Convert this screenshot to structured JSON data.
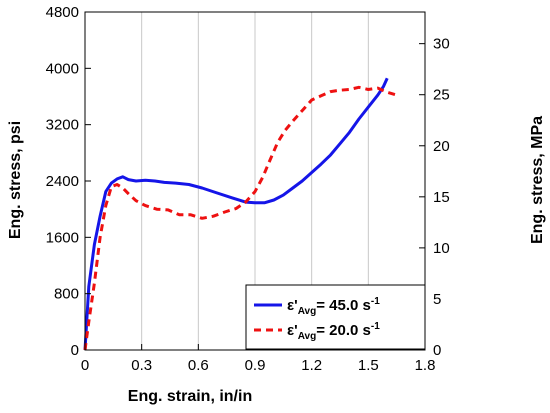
{
  "chart_data": {
    "type": "line",
    "xlabel": "Eng. strain, in/in",
    "ylabel": "Eng. stress, psi",
    "y2label": "Eng. stress, MPa",
    "xlim": [
      0,
      1.8
    ],
    "ylim": [
      0,
      4800
    ],
    "y2lim": [
      0,
      33.1
    ],
    "grid": "vertical",
    "legend_position": "bottom-right",
    "x_ticks": [
      0,
      0.3,
      0.6,
      0.9,
      1.2,
      1.5,
      1.8
    ],
    "x_tick_labels": [
      "0",
      "0.3",
      "0.6",
      "0.9",
      "1.2",
      "1.5",
      "1.8"
    ],
    "y_ticks": [
      0,
      800,
      1600,
      2400,
      3200,
      4000,
      4800
    ],
    "y_tick_labels": [
      "0",
      "800",
      "1600",
      "2400",
      "3200",
      "4000",
      "4800"
    ],
    "y2_ticks": [
      0,
      5,
      10,
      15,
      20,
      25,
      30
    ],
    "y2_tick_labels": [
      "0",
      "5",
      "10",
      "15",
      "20",
      "25",
      "30"
    ],
    "series": [
      {
        "name_base": "ε'",
        "name_sub": "Avg",
        "name_value": "= 45.0 s",
        "name_sup": "-1",
        "color": "#1515e8",
        "dash": "solid",
        "x": [
          0.0,
          0.02,
          0.05,
          0.08,
          0.11,
          0.14,
          0.17,
          0.2,
          0.23,
          0.27,
          0.32,
          0.37,
          0.42,
          0.48,
          0.55,
          0.62,
          0.7,
          0.78,
          0.85,
          0.9,
          0.95,
          1.0,
          1.05,
          1.1,
          1.15,
          1.2,
          1.25,
          1.3,
          1.35,
          1.4,
          1.45,
          1.5,
          1.55,
          1.58,
          1.6
        ],
        "y": [
          0,
          900,
          1500,
          1900,
          2250,
          2370,
          2430,
          2460,
          2420,
          2400,
          2410,
          2400,
          2380,
          2370,
          2350,
          2300,
          2230,
          2160,
          2100,
          2090,
          2090,
          2130,
          2200,
          2300,
          2400,
          2520,
          2640,
          2770,
          2930,
          3090,
          3280,
          3450,
          3620,
          3740,
          3860
        ]
      },
      {
        "name_base": "ε'",
        "name_sub": "Avg",
        "name_value": "= 20.0 s",
        "name_sup": "-1",
        "color": "#ee1111",
        "dash": "dashed",
        "x": [
          0.0,
          0.02,
          0.05,
          0.08,
          0.11,
          0.14,
          0.17,
          0.2,
          0.23,
          0.27,
          0.32,
          0.38,
          0.44,
          0.5,
          0.56,
          0.62,
          0.68,
          0.74,
          0.8,
          0.85,
          0.9,
          0.94,
          0.98,
          1.02,
          1.06,
          1.1,
          1.15,
          1.2,
          1.25,
          1.3,
          1.35,
          1.4,
          1.45,
          1.5,
          1.55,
          1.6,
          1.65
        ],
        "y": [
          0,
          400,
          950,
          1600,
          2050,
          2320,
          2350,
          2300,
          2220,
          2120,
          2050,
          2000,
          1990,
          1920,
          1920,
          1870,
          1900,
          1960,
          2010,
          2100,
          2250,
          2450,
          2700,
          2950,
          3120,
          3250,
          3400,
          3550,
          3610,
          3670,
          3690,
          3700,
          3730,
          3700,
          3720,
          3660,
          3620
        ]
      }
    ]
  }
}
